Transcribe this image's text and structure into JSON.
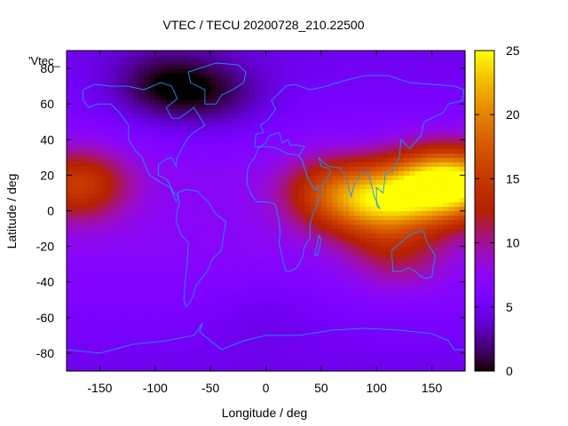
{
  "chart_data": {
    "type": "heatmap",
    "title": "VTEC / TECU 20200728_210.22500",
    "xlabel": "Longitude / deg",
    "ylabel": "Latitude / deg",
    "legend_key": "'Vtec_",
    "xlim": [
      -180,
      180
    ],
    "ylim": [
      -90,
      90
    ],
    "x_ticks": [
      -150,
      -100,
      -50,
      0,
      50,
      100,
      150
    ],
    "y_ticks": [
      -80,
      -60,
      -40,
      -20,
      0,
      20,
      40,
      60,
      80
    ],
    "colorbar": {
      "min": 0,
      "max": 25,
      "ticks": [
        0,
        5,
        10,
        15,
        20,
        25
      ],
      "colormap": "gnuplot-hot: black-purple-red-orange-yellow"
    },
    "coastline_color": "#1e90ff",
    "grid": false,
    "colorbar_position": "right",
    "field_features": [
      {
        "lon": 105,
        "lat": 5,
        "value": 19
      },
      {
        "lon": 155,
        "lat": 15,
        "value": 22
      },
      {
        "lon": 60,
        "lat": 10,
        "value": 15
      },
      {
        "lon": -170,
        "lat": 15,
        "value": 15
      },
      {
        "lon": -90,
        "lat": 70,
        "value": 2
      },
      {
        "lon": -40,
        "lat": 65,
        "value": 4
      },
      {
        "lon": 0,
        "lat": -60,
        "value": 6
      },
      {
        "lon": 120,
        "lat": -25,
        "value": 11
      }
    ]
  }
}
